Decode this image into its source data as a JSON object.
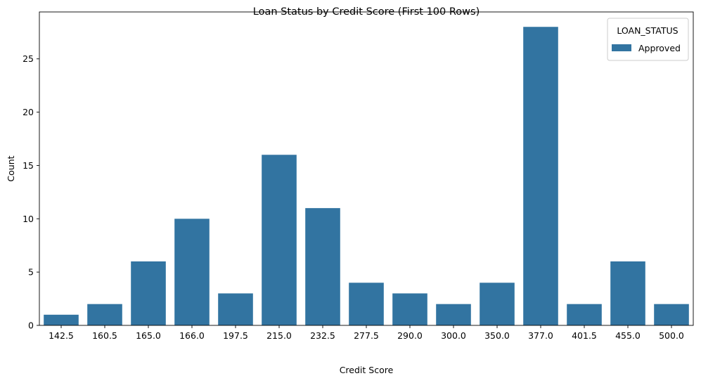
{
  "chart_data": {
    "type": "bar",
    "title": "Loan Status by Credit Score (First 100 Rows)",
    "xlabel": "Credit Score",
    "ylabel": "Count",
    "categories": [
      "142.5",
      "160.5",
      "165.0",
      "166.0",
      "197.5",
      "215.0",
      "232.5",
      "277.5",
      "290.0",
      "300.0",
      "350.0",
      "377.0",
      "401.5",
      "455.0",
      "500.0"
    ],
    "series": [
      {
        "name": "Approved",
        "values": [
          1,
          2,
          6,
          10,
          3,
          16,
          11,
          4,
          3,
          2,
          4,
          28,
          2,
          6,
          2
        ]
      }
    ],
    "ylim": [
      0,
      29.4
    ],
    "yticks": [
      0,
      5,
      10,
      15,
      20,
      25
    ],
    "legend": {
      "title": "LOAN_STATUS",
      "position": "top-right"
    },
    "grid": false,
    "colors": {
      "Approved": "#3274a1"
    }
  }
}
